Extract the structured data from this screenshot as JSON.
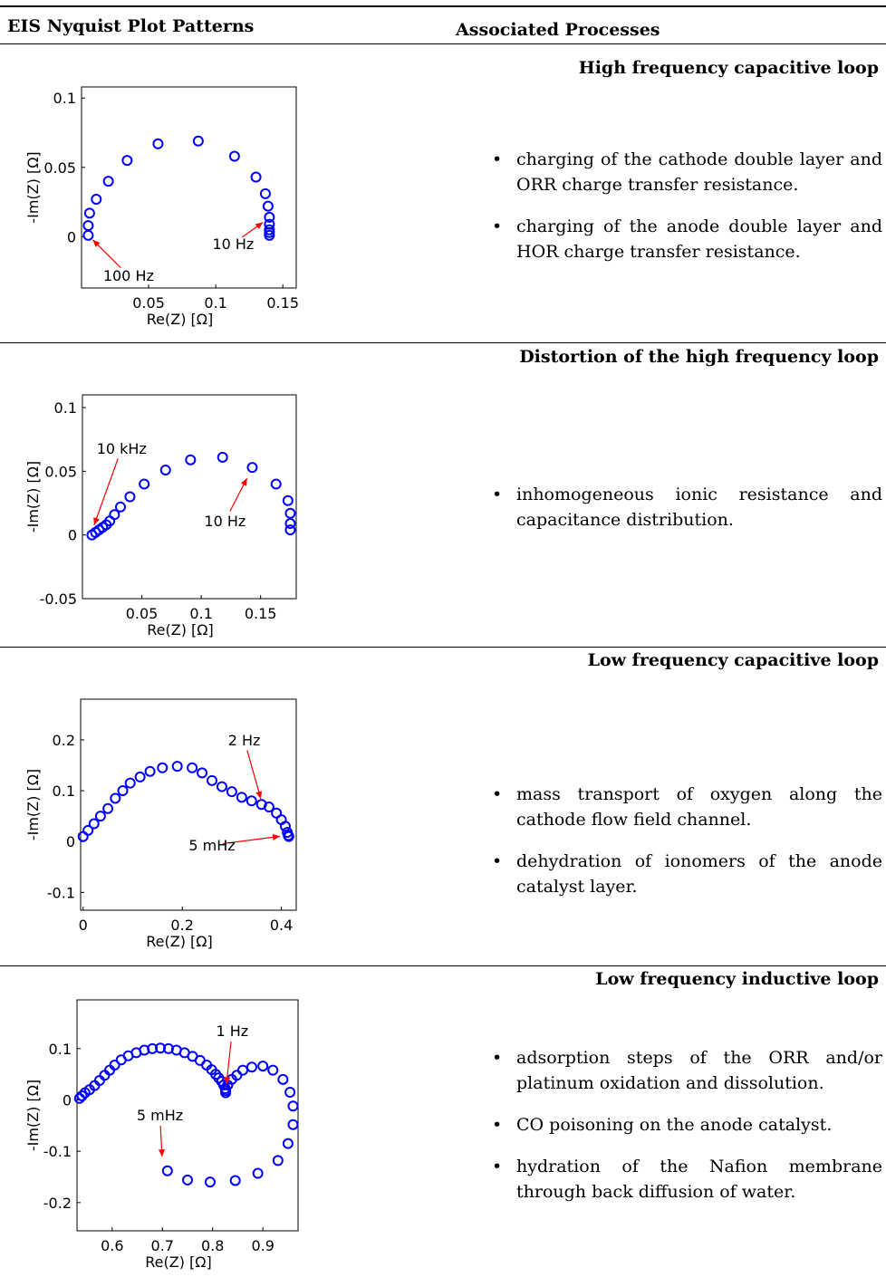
{
  "table": {
    "header_left": "EIS Nyquist Plot Patterns",
    "header_right": "Associated Processes"
  },
  "rows": [
    {
      "process_title": "High frequency capacitive loop",
      "bullets": [
        "charging of the cathode double layer and ORR charge transfer resistance.",
        "charging of the anode double layer and HOR charge transfer resistance."
      ]
    },
    {
      "process_title": "Distortion of the high frequency loop",
      "bullets": [
        "inhomogeneous ionic resistance and capacitance distribution."
      ]
    },
    {
      "process_title": "Low frequency capacitive loop",
      "bullets": [
        "mass transport of oxygen along the cathode flow field channel.",
        "dehydration of ionomers of the anode catalyst layer."
      ]
    },
    {
      "process_title": "Low frequency inductive loop",
      "bullets": [
        "adsorption steps of the ORR and/or platinum oxidation and dissolution.",
        "CO poisoning on the anode catalyst.",
        "hydration of the Nafion membrane through back diffusion of water."
      ]
    }
  ],
  "colors": {
    "marker": "#0000ff",
    "annotation": "#ff0000",
    "axis": "#000000"
  },
  "chart_data": [
    {
      "type": "scatter",
      "xlabel": "Re(Z) [Ω]",
      "ylabel": "-Im(Z) [Ω]",
      "xlim": [
        0.0,
        0.16
      ],
      "ylim": [
        -0.037,
        0.108
      ],
      "xticks": [
        0.05,
        0.1,
        0.15
      ],
      "xtick_labels": [
        "0.05",
        "0.1",
        "0.15"
      ],
      "yticks": [
        0,
        0.05,
        0.1
      ],
      "ytick_labels": [
        "0",
        "0.05",
        "0.1"
      ],
      "points": [
        [
          0.005,
          0.001
        ],
        [
          0.005,
          0.008
        ],
        [
          0.006,
          0.017
        ],
        [
          0.011,
          0.027
        ],
        [
          0.02,
          0.04
        ],
        [
          0.034,
          0.055
        ],
        [
          0.057,
          0.067
        ],
        [
          0.087,
          0.069
        ],
        [
          0.114,
          0.058
        ],
        [
          0.13,
          0.043
        ],
        [
          0.137,
          0.031
        ],
        [
          0.139,
          0.022
        ],
        [
          0.14,
          0.014
        ],
        [
          0.14,
          0.009
        ],
        [
          0.14,
          0.005
        ],
        [
          0.14,
          0.003
        ],
        [
          0.14,
          0.001
        ]
      ],
      "annotations": [
        {
          "text": "100 Hz",
          "point": [
            0.005,
            0.001
          ],
          "text_at": [
            0.035,
            -0.028
          ]
        },
        {
          "text": "10 Hz",
          "point": [
            0.139,
            0.013
          ],
          "text_at": [
            0.113,
            -0.005
          ]
        }
      ]
    },
    {
      "type": "scatter",
      "xlabel": "Re(Z) [Ω]",
      "ylabel": "-Im(Z) [Ω]",
      "xlim": [
        0.0,
        0.18
      ],
      "ylim": [
        -0.05,
        0.11
      ],
      "xticks": [
        0.05,
        0.1,
        0.15
      ],
      "xtick_labels": [
        "0.05",
        "0.1",
        "0.15"
      ],
      "yticks": [
        -0.05,
        0,
        0.05,
        0.1
      ],
      "ytick_labels": [
        "-0.05",
        "0",
        "0.05",
        "0.1"
      ],
      "points": [
        [
          0.008,
          0.0
        ],
        [
          0.011,
          0.002
        ],
        [
          0.014,
          0.004
        ],
        [
          0.017,
          0.006
        ],
        [
          0.02,
          0.008
        ],
        [
          0.023,
          0.011
        ],
        [
          0.027,
          0.016
        ],
        [
          0.032,
          0.022
        ],
        [
          0.04,
          0.03
        ],
        [
          0.052,
          0.04
        ],
        [
          0.07,
          0.051
        ],
        [
          0.091,
          0.059
        ],
        [
          0.118,
          0.061
        ],
        [
          0.143,
          0.053
        ],
        [
          0.163,
          0.04
        ],
        [
          0.173,
          0.027
        ],
        [
          0.175,
          0.017
        ],
        [
          0.175,
          0.009
        ],
        [
          0.175,
          0.004
        ]
      ],
      "annotations": [
        {
          "text": "10 kHz",
          "point": [
            0.008,
            0.003
          ],
          "text_at": [
            0.033,
            0.068
          ]
        },
        {
          "text": "10 Hz",
          "point": [
            0.141,
            0.049
          ],
          "text_at": [
            0.12,
            0.011
          ]
        }
      ]
    },
    {
      "type": "scatter",
      "xlabel": "Re(Z) [Ω]",
      "ylabel": "-Im(Z) [Ω]",
      "xlim": [
        -0.005,
        0.43
      ],
      "ylim": [
        -0.135,
        0.28
      ],
      "xticks": [
        0,
        0.2,
        0.4
      ],
      "xtick_labels": [
        "0",
        "0.2",
        "0.4"
      ],
      "yticks": [
        -0.1,
        0,
        0.1,
        0.2
      ],
      "ytick_labels": [
        "-0.1",
        "0",
        "0.1",
        "0.2"
      ],
      "points": [
        [
          0.0,
          0.01
        ],
        [
          0.01,
          0.022
        ],
        [
          0.022,
          0.035
        ],
        [
          0.035,
          0.05
        ],
        [
          0.05,
          0.065
        ],
        [
          0.065,
          0.085
        ],
        [
          0.08,
          0.1
        ],
        [
          0.095,
          0.115
        ],
        [
          0.115,
          0.127
        ],
        [
          0.135,
          0.138
        ],
        [
          0.16,
          0.145
        ],
        [
          0.19,
          0.148
        ],
        [
          0.22,
          0.145
        ],
        [
          0.24,
          0.135
        ],
        [
          0.26,
          0.12
        ],
        [
          0.28,
          0.108
        ],
        [
          0.3,
          0.098
        ],
        [
          0.32,
          0.087
        ],
        [
          0.34,
          0.08
        ],
        [
          0.36,
          0.073
        ],
        [
          0.375,
          0.068
        ],
        [
          0.39,
          0.056
        ],
        [
          0.4,
          0.043
        ],
        [
          0.408,
          0.03
        ],
        [
          0.412,
          0.018
        ],
        [
          0.414,
          0.012
        ],
        [
          0.415,
          0.01
        ]
      ],
      "annotations": [
        {
          "text": "2 Hz",
          "point": [
            0.362,
            0.072
          ],
          "text_at": [
            0.325,
            0.2
          ]
        },
        {
          "text": "5 mHz",
          "point": [
            0.41,
            0.012
          ],
          "text_at": [
            0.26,
            -0.007
          ]
        }
      ]
    },
    {
      "type": "scatter",
      "xlabel": "Re(Z) [Ω]",
      "ylabel": "-Im(Z) [Ω]",
      "xlim": [
        0.53,
        0.97
      ],
      "ylim": [
        -0.255,
        0.195
      ],
      "xticks": [
        0.6,
        0.7,
        0.8,
        0.9
      ],
      "xtick_labels": [
        "0.6",
        "0.7",
        "0.8",
        "0.9"
      ],
      "yticks": [
        -0.2,
        -0.1,
        0,
        0.1
      ],
      "ytick_labels": [
        "-0.2",
        "-0.1",
        "0",
        "0.1"
      ],
      "points": [
        [
          0.535,
          0.003
        ],
        [
          0.54,
          0.008
        ],
        [
          0.546,
          0.014
        ],
        [
          0.555,
          0.02
        ],
        [
          0.565,
          0.028
        ],
        [
          0.575,
          0.038
        ],
        [
          0.585,
          0.048
        ],
        [
          0.595,
          0.058
        ],
        [
          0.605,
          0.068
        ],
        [
          0.618,
          0.078
        ],
        [
          0.632,
          0.086
        ],
        [
          0.648,
          0.092
        ],
        [
          0.664,
          0.097
        ],
        [
          0.68,
          0.1
        ],
        [
          0.696,
          0.101
        ],
        [
          0.712,
          0.1
        ],
        [
          0.728,
          0.097
        ],
        [
          0.744,
          0.092
        ],
        [
          0.76,
          0.085
        ],
        [
          0.775,
          0.077
        ],
        [
          0.788,
          0.068
        ],
        [
          0.798,
          0.059
        ],
        [
          0.806,
          0.05
        ],
        [
          0.812,
          0.043
        ],
        [
          0.818,
          0.036
        ],
        [
          0.822,
          0.029
        ],
        [
          0.825,
          0.022
        ],
        [
          0.826,
          0.018
        ],
        [
          0.826,
          0.014
        ],
        [
          0.83,
          0.029
        ],
        [
          0.838,
          0.04
        ],
        [
          0.848,
          0.048
        ],
        [
          0.86,
          0.058
        ],
        [
          0.878,
          0.064
        ],
        [
          0.9,
          0.066
        ],
        [
          0.92,
          0.058
        ],
        [
          0.94,
          0.04
        ],
        [
          0.954,
          0.015
        ],
        [
          0.96,
          -0.012
        ],
        [
          0.96,
          -0.048
        ],
        [
          0.95,
          -0.085
        ],
        [
          0.93,
          -0.118
        ],
        [
          0.89,
          -0.143
        ],
        [
          0.845,
          -0.157
        ],
        [
          0.795,
          -0.16
        ],
        [
          0.75,
          -0.156
        ],
        [
          0.71,
          -0.138
        ]
      ],
      "annotations": [
        {
          "text": "1 Hz",
          "point": [
            0.826,
            0.018
          ],
          "text_at": [
            0.839,
            0.135
          ]
        },
        {
          "text": "5 mHz",
          "point": [
            0.7,
            -0.123
          ],
          "text_at": [
            0.695,
            -0.029
          ]
        }
      ]
    }
  ]
}
